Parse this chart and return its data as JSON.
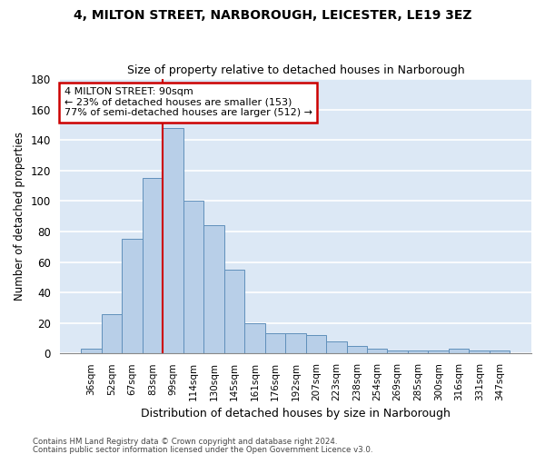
{
  "title_line1": "4, MILTON STREET, NARBOROUGH, LEICESTER, LE19 3EZ",
  "title_line2": "Size of property relative to detached houses in Narborough",
  "xlabel": "Distribution of detached houses by size in Narborough",
  "ylabel": "Number of detached properties",
  "categories": [
    "36sqm",
    "52sqm",
    "67sqm",
    "83sqm",
    "99sqm",
    "114sqm",
    "130sqm",
    "145sqm",
    "161sqm",
    "176sqm",
    "192sqm",
    "207sqm",
    "223sqm",
    "238sqm",
    "254sqm",
    "269sqm",
    "285sqm",
    "300sqm",
    "316sqm",
    "331sqm",
    "347sqm"
  ],
  "values": [
    3,
    26,
    75,
    115,
    148,
    100,
    84,
    55,
    20,
    13,
    13,
    12,
    8,
    5,
    3,
    2,
    2,
    2,
    3,
    2,
    2
  ],
  "bar_color": "#b8cfe8",
  "bar_edge_color": "#6090bb",
  "annotation_text": "4 MILTON STREET: 90sqm\n← 23% of detached houses are smaller (153)\n77% of semi-detached houses are larger (512) →",
  "annotation_box_facecolor": "white",
  "annotation_box_edgecolor": "#cc0000",
  "vline_index": 4,
  "vline_color": "#cc0000",
  "ylim": [
    0,
    180
  ],
  "yticks": [
    0,
    20,
    40,
    60,
    80,
    100,
    120,
    140,
    160,
    180
  ],
  "background_color": "#dce8f5",
  "grid_color": "white",
  "footer1": "Contains HM Land Registry data © Crown copyright and database right 2024.",
  "footer2": "Contains public sector information licensed under the Open Government Licence v3.0."
}
